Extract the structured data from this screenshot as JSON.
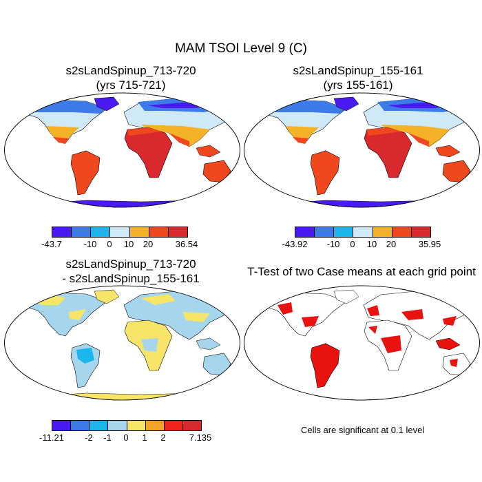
{
  "figure": {
    "title": "MAM TSOI Level 9 (C)"
  },
  "panels": [
    {
      "id": "p1",
      "title_line1": "s2sLandSpinup_713-720",
      "title_line2": "(yrs 715-721)",
      "colorbar": {
        "colors": [
          "#4a1af0",
          "#3c7be8",
          "#1ab6ec",
          "#cfe9f7",
          "#f4b227",
          "#f0481e",
          "#d9282e"
        ],
        "tick_labels": [
          "-43.7",
          "-10",
          "0",
          "10",
          "20",
          "36.54"
        ]
      }
    },
    {
      "id": "p2",
      "title_line1": "s2sLandSpinup_155-161",
      "title_line2": "(yrs 155-161)",
      "colorbar": {
        "colors": [
          "#4a1af0",
          "#3c7be8",
          "#1ab6ec",
          "#cfe9f7",
          "#f4b227",
          "#f0481e",
          "#d9282e"
        ],
        "tick_labels": [
          "-43.92",
          "-10",
          "0",
          "10",
          "20",
          "35.95"
        ]
      }
    },
    {
      "id": "p3",
      "title_line1": "s2sLandSpinup_713-720",
      "title_line2": "- s2sLandSpinup_155-161",
      "colorbar": {
        "colors": [
          "#4a1af0",
          "#3c7be8",
          "#1ab6ec",
          "#a6d6ee",
          "#f7e56a",
          "#f4a528",
          "#f0241a",
          "#d9282e"
        ],
        "tick_labels": [
          "-11.21",
          "-2",
          "-1",
          "0",
          "1",
          "2",
          "7.135"
        ]
      }
    },
    {
      "id": "p4",
      "title_line1": "T-Test of two Case means at each grid point",
      "note": "Cells are significant at 0.1 level"
    }
  ]
}
